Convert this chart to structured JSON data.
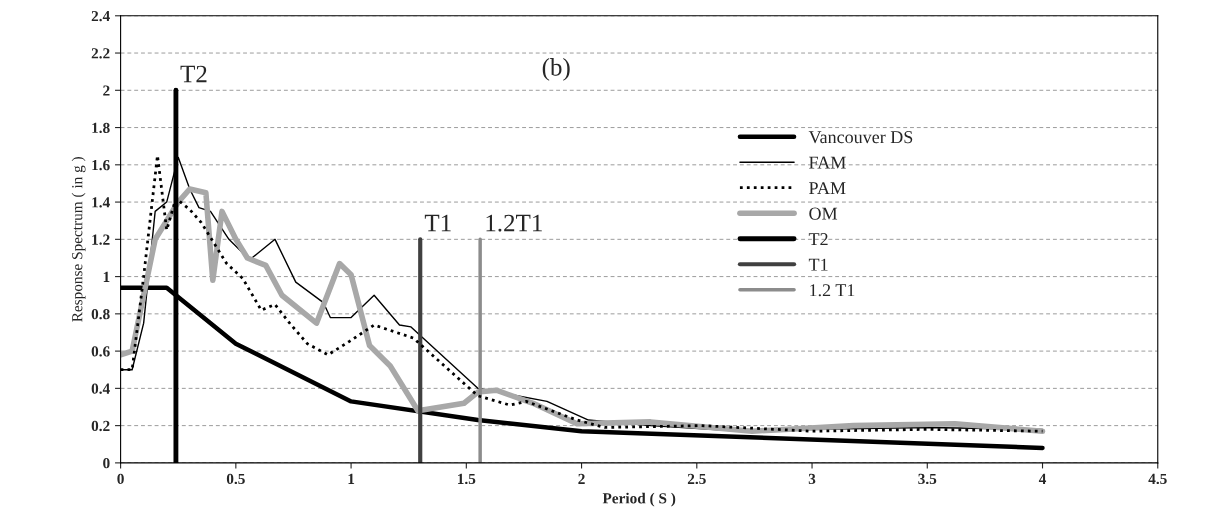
{
  "chart_data": {
    "type": "line",
    "xlabel": "Period ( S )",
    "ylabel": "Response Spectrum ( in g )",
    "xlim": [
      0,
      4.5
    ],
    "xticks": [
      0,
      0.5,
      1,
      1.5,
      2,
      2.5,
      3,
      3.5,
      4,
      4.5
    ],
    "ylim": [
      0,
      2.4
    ],
    "yticks": [
      0,
      0.2,
      0.4,
      0.6,
      0.8,
      1,
      1.2,
      1.4,
      1.6,
      1.8,
      2,
      2.2,
      2.4
    ],
    "grid": "y",
    "legend": "top right",
    "annotations": [
      "(b)",
      {
        "text": "T2",
        "x": 0.24,
        "y": 2.0
      },
      {
        "text": "T1",
        "x": 1.3,
        "y": 1.2
      },
      {
        "text": "1.2T1",
        "x": 1.56,
        "y": 1.2
      }
    ],
    "series": [
      {
        "name": "Vancouver DS",
        "color": "#000000",
        "line_style": "solid",
        "x": [
          0,
          0.2,
          0.5,
          1.0,
          1.55,
          2.0,
          4.0
        ],
        "values": [
          0.94,
          0.94,
          0.64,
          0.33,
          0.23,
          0.17,
          0.08
        ]
      },
      {
        "name": "FAM",
        "color": "#000000",
        "line_style": "solid",
        "x": [
          0,
          0.05,
          0.1,
          0.15,
          0.2,
          0.25,
          0.3,
          0.34,
          0.39,
          0.47,
          0.56,
          0.67,
          0.76,
          0.88,
          0.91,
          1.0,
          1.1,
          1.21,
          1.26,
          1.55,
          1.85,
          2.03,
          2.3,
          2.7,
          3.0,
          3.5,
          4.0
        ],
        "values": [
          0.5,
          0.5,
          0.75,
          1.35,
          1.4,
          1.64,
          1.47,
          1.37,
          1.35,
          1.2,
          1.09,
          1.2,
          0.97,
          0.86,
          0.78,
          0.78,
          0.9,
          0.74,
          0.73,
          0.4,
          0.33,
          0.23,
          0.2,
          0.17,
          0.18,
          0.19,
          0.18
        ]
      },
      {
        "name": "PAM",
        "color": "#000000",
        "line_style": "dotted",
        "x": [
          0,
          0.05,
          0.1,
          0.16,
          0.2,
          0.24,
          0.3,
          0.35,
          0.46,
          0.53,
          0.61,
          0.67,
          0.74,
          0.81,
          0.9,
          0.99,
          1.1,
          1.27,
          1.55,
          1.69,
          1.76,
          1.98,
          2.1,
          2.52,
          3.0,
          3.5,
          4.0
        ],
        "values": [
          0.5,
          0.5,
          1.0,
          1.65,
          1.25,
          1.42,
          1.36,
          1.29,
          1.07,
          0.99,
          0.82,
          0.85,
          0.74,
          0.64,
          0.58,
          0.65,
          0.74,
          0.67,
          0.36,
          0.31,
          0.33,
          0.23,
          0.19,
          0.2,
          0.17,
          0.18,
          0.17
        ]
      },
      {
        "name": "OM",
        "color": "#a8a8a8",
        "line_style": "solid",
        "x": [
          0,
          0.05,
          0.1,
          0.15,
          0.2,
          0.25,
          0.3,
          0.37,
          0.4,
          0.44,
          0.5,
          0.55,
          0.63,
          0.7,
          0.85,
          0.95,
          1.0,
          1.08,
          1.17,
          1.29,
          1.49,
          1.55,
          1.63,
          1.79,
          1.98,
          2.3,
          2.74,
          3.18,
          3.62,
          4.0
        ],
        "values": [
          0.58,
          0.6,
          0.9,
          1.2,
          1.3,
          1.4,
          1.47,
          1.45,
          0.98,
          1.35,
          1.2,
          1.1,
          1.06,
          0.9,
          0.75,
          1.07,
          1.01,
          0.63,
          0.52,
          0.28,
          0.32,
          0.38,
          0.39,
          0.32,
          0.21,
          0.22,
          0.17,
          0.2,
          0.21,
          0.17
        ]
      },
      {
        "name": "T2",
        "color": "#000000",
        "line_style": "solid",
        "x": [
          0.24,
          0.24
        ],
        "values": [
          0,
          2.0
        ]
      },
      {
        "name": "T1",
        "color": "#404040",
        "line_style": "solid",
        "x": [
          1.3,
          1.3
        ],
        "values": [
          0,
          1.2
        ]
      },
      {
        "name": "1.2 T1",
        "color": "#8c8c8c",
        "line_style": "solid",
        "x": [
          1.56,
          1.56
        ],
        "values": [
          0,
          1.2
        ]
      }
    ]
  }
}
